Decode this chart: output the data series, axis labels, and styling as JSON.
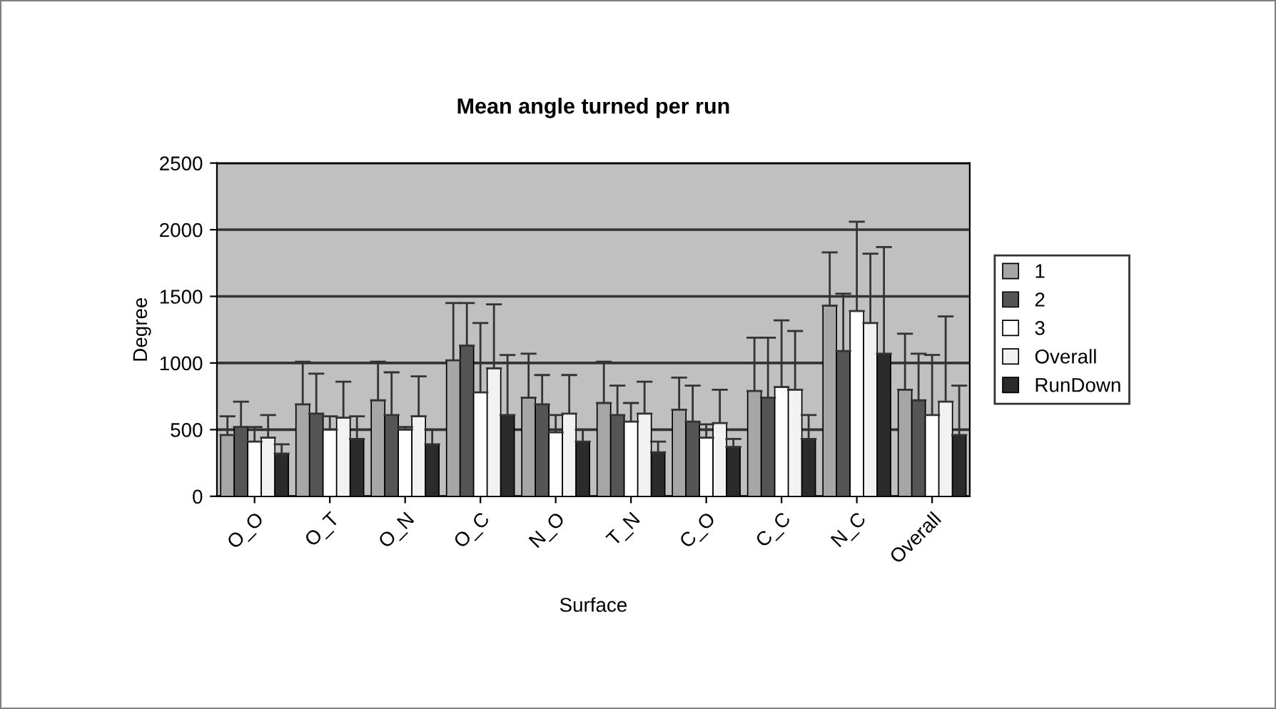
{
  "chart_data": {
    "type": "bar",
    "title": "Mean angle turned per run",
    "xlabel": "Surface",
    "ylabel": "Degree",
    "categories": [
      "O_O",
      "O_T",
      "O_N",
      "O_C",
      "N_O",
      "T_N",
      "C_O",
      "C_C",
      "N_C",
      "Overall"
    ],
    "series": [
      {
        "name": "1",
        "color": "#a6a6a6",
        "values": [
          460,
          690,
          720,
          1020,
          740,
          700,
          650,
          790,
          1430,
          800
        ],
        "errors": [
          [
            460,
            600
          ],
          [
            690,
            1010
          ],
          [
            720,
            1010
          ],
          [
            1020,
            1450
          ],
          [
            740,
            1070
          ],
          [
            700,
            1010
          ],
          [
            650,
            890
          ],
          [
            790,
            1190
          ],
          [
            1430,
            1830
          ],
          [
            800,
            1220
          ]
        ]
      },
      {
        "name": "2",
        "color": "#555555",
        "values": [
          520,
          620,
          610,
          1130,
          690,
          610,
          560,
          740,
          1090,
          720
        ],
        "errors": [
          [
            520,
            710
          ],
          [
            620,
            920
          ],
          [
            610,
            930
          ],
          [
            1130,
            1450
          ],
          [
            690,
            910
          ],
          [
            610,
            830
          ],
          [
            560,
            830
          ],
          [
            740,
            1190
          ],
          [
            1090,
            1520
          ],
          [
            720,
            1070
          ]
        ]
      },
      {
        "name": "3",
        "color": "#ffffff",
        "values": [
          410,
          500,
          500,
          780,
          480,
          560,
          440,
          820,
          1390,
          610
        ],
        "errors": [
          [
            410,
            520
          ],
          [
            500,
            600
          ],
          [
            500,
            520
          ],
          [
            780,
            1300
          ],
          [
            480,
            610
          ],
          [
            560,
            700
          ],
          [
            440,
            540
          ],
          [
            820,
            1320
          ],
          [
            1390,
            2060
          ],
          [
            610,
            1060
          ]
        ]
      },
      {
        "name": "Overall",
        "color": "#f2f2f2",
        "values": [
          440,
          590,
          600,
          960,
          620,
          620,
          550,
          800,
          1300,
          710
        ],
        "errors": [
          [
            440,
            610
          ],
          [
            590,
            860
          ],
          [
            600,
            900
          ],
          [
            960,
            1440
          ],
          [
            620,
            910
          ],
          [
            620,
            860
          ],
          [
            550,
            800
          ],
          [
            800,
            1240
          ],
          [
            1300,
            1820
          ],
          [
            710,
            1350
          ]
        ]
      },
      {
        "name": "RunDown",
        "color": "#2b2b2b",
        "values": [
          320,
          430,
          390,
          610,
          410,
          330,
          370,
          430,
          1070,
          460
        ],
        "errors": [
          [
            320,
            390
          ],
          [
            430,
            600
          ],
          [
            390,
            500
          ],
          [
            610,
            1060
          ],
          [
            410,
            500
          ],
          [
            330,
            410
          ],
          [
            370,
            430
          ],
          [
            430,
            610
          ],
          [
            1070,
            1870
          ],
          [
            460,
            830
          ]
        ]
      }
    ],
    "ylim": [
      0,
      2500
    ],
    "yticks": [
      0,
      500,
      1000,
      1500,
      2000,
      2500
    ],
    "grid": "y",
    "legend": "right"
  }
}
